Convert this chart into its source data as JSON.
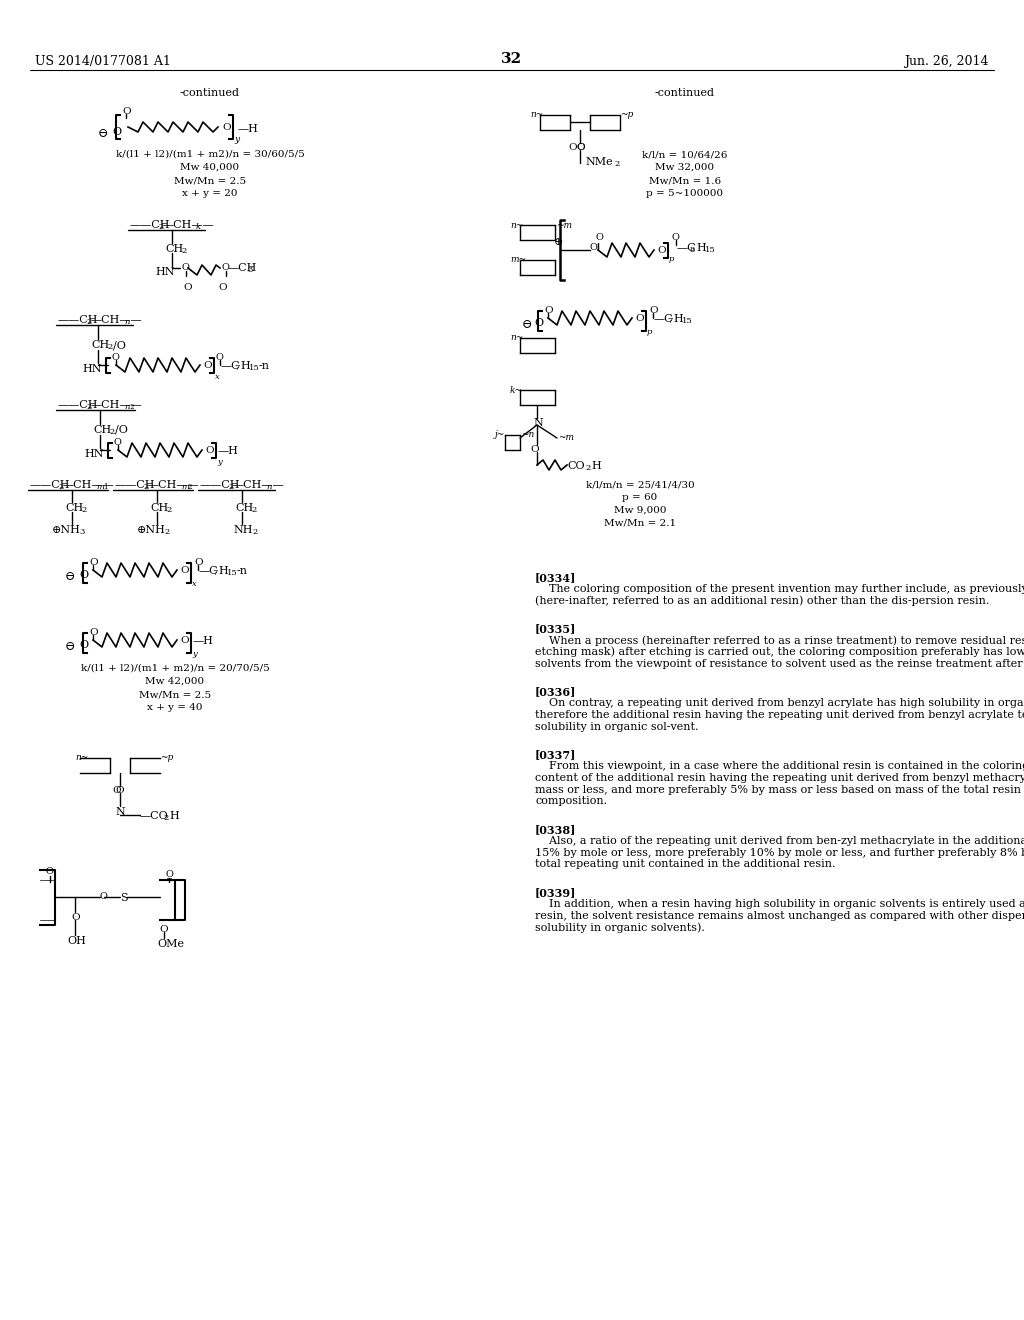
{
  "background_color": "#ffffff",
  "header_left": "US 2014/0177081 A1",
  "header_right": "Jun. 26, 2014",
  "page_number": "32",
  "paragraphs": [
    {
      "tag": "[0334]",
      "text": "The coloring composition of the present invention may further include, as previously mentioned, a resin (here-inafter, referred to as an additional resin) other than the dis-persion resin."
    },
    {
      "tag": "[0335]",
      "text": "When a process (hereinafter referred to as a rinse treatment) to remove residual resist patterns (i.e., a etching mask) after etching is carried out, the coloring composition preferably has low solubility in organic solvents from the viewpoint of resistance to solvent used as the reinse treatment after dry etching."
    },
    {
      "tag": "[0336]",
      "text": "On contray, a repeating unit derived from benzyl acrylate has high solubility in organic solvent, and therefore the additional resin having the repeating unit derived from benzyl acrylate tends to have high solubility in organic sol-vent."
    },
    {
      "tag": "[0337]",
      "text": "From this viewpoint, in a case where the additional resin is contained in the coloring composition, a content of the additional resin having the repeating unit derived from benzyl methacrylate is preferably 10% by mass or less, and more preferably 5% by mass or less based on mass of the total resin contained in the coloring composition."
    },
    {
      "tag": "[0338]",
      "text": "Also, a ratio of the repeating unit derived from ben-zyl methacrylate in the additional resin is preferably 15% by mole or less, more preferably 10% by mole or less, and further preferably 8% by mole or less based on a total repeating unit contained in the additional resin."
    },
    {
      "tag": "[0339]",
      "text": "In addition, when a resin having high solubility in organic solvents is entirely used as a dispersant resin, the solvent resistance remains almost unchanged as compared with other dispersant resins (having low solubility in organic solvents)."
    }
  ]
}
